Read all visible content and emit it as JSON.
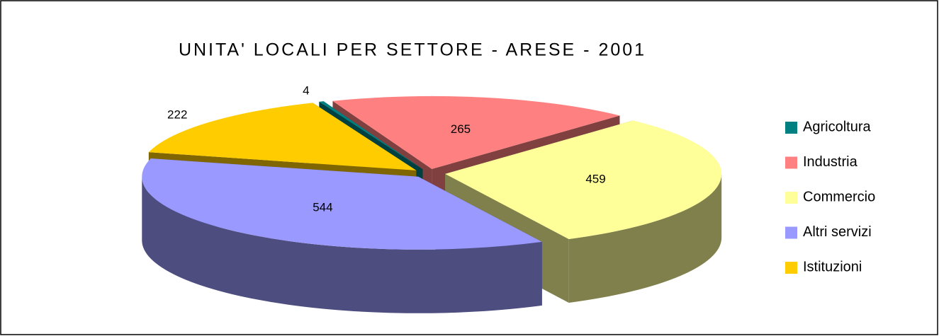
{
  "chart_data": {
    "type": "pie3d",
    "title": "UNITA' LOCALI PER SETTORE - ARESE - 2001",
    "categories": [
      "Agricoltura",
      "Industria",
      "Commercio",
      "Altri servizi",
      "Istituzioni"
    ],
    "values": [
      4,
      265,
      459,
      544,
      222
    ],
    "colors": [
      "#008080",
      "#FF8080",
      "#FFFF99",
      "#9999FF",
      "#FFCC00"
    ],
    "legend": "right"
  }
}
